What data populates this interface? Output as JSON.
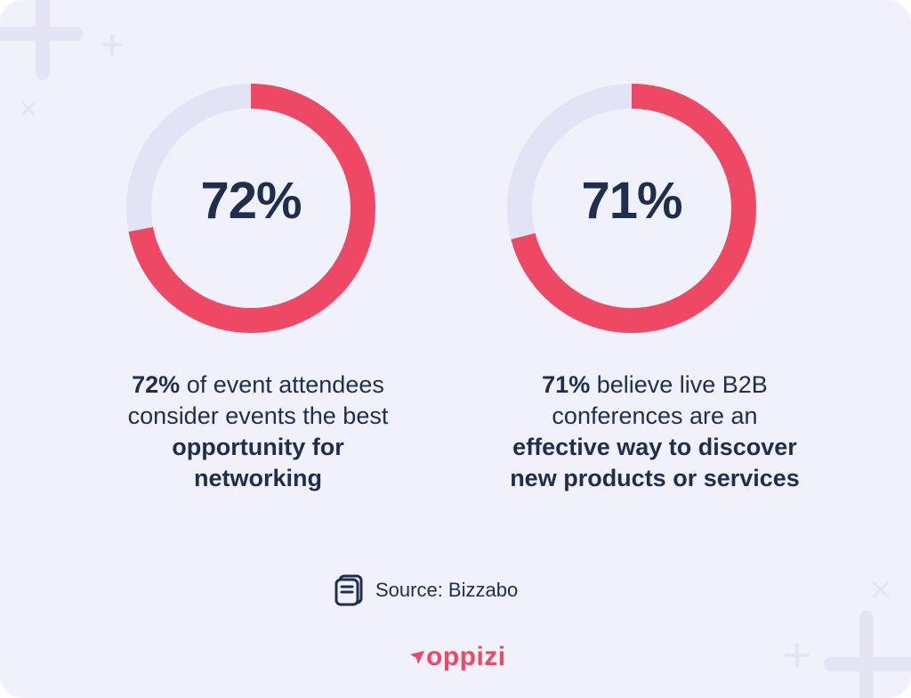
{
  "colors": {
    "background": "#f1f1fb",
    "accent": "#ee4865",
    "track": "#e3e3f6",
    "text": "#1f2e4d",
    "decor": "#e4e4f4"
  },
  "chart_data": [
    {
      "type": "pie",
      "variant": "donut",
      "center_label": "72%",
      "values": [
        72,
        28
      ],
      "series_colors": [
        "#ee4865",
        "#e3e3f6"
      ],
      "caption": {
        "bold_1": "72%",
        "text_1": " of event attendees consider events the best ",
        "bold_2": "opportunity for networking",
        "text_2": ""
      }
    },
    {
      "type": "pie",
      "variant": "donut",
      "center_label": "71%",
      "values": [
        71,
        29
      ],
      "series_colors": [
        "#ee4865",
        "#e3e3f6"
      ],
      "caption": {
        "bold_1": "71%",
        "text_1": " believe live B2B conferences are an ",
        "bold_2": "effective way to discover new products or services",
        "text_2": ""
      }
    }
  ],
  "source": {
    "icon": "document-icon",
    "label": "Source: Bizzabo"
  },
  "brand": {
    "name": "oppizi",
    "icon": "paper-plane-icon"
  }
}
